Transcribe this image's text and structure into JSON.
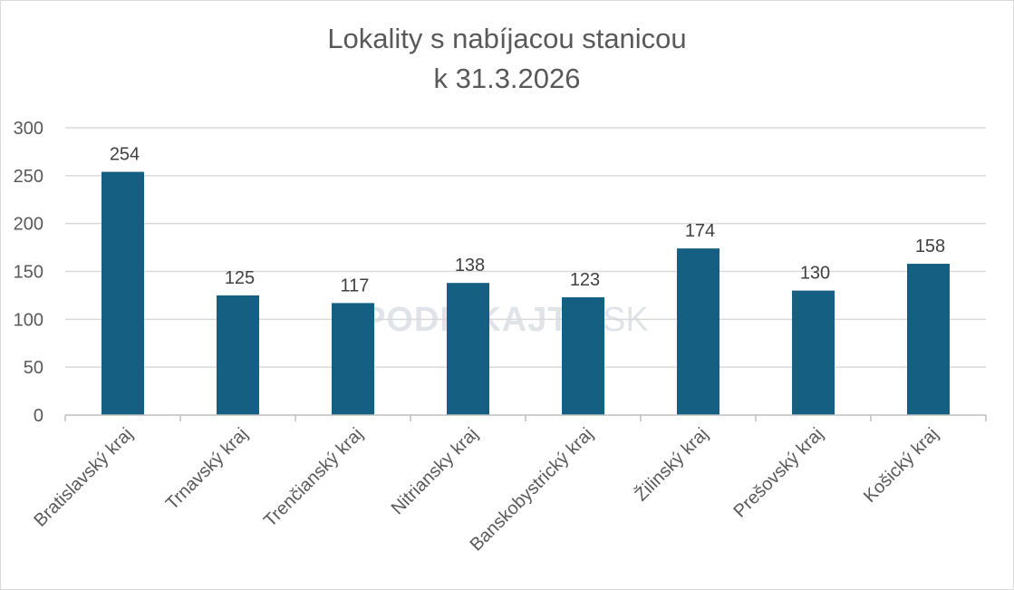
{
  "chart_data": {
    "type": "bar",
    "title_line1": "Lokality s nabíjacou stanicou",
    "title_line2": "k 31.3.2026",
    "categories": [
      "Bratislavský kraj",
      "Trnavský kraj",
      "Trenčianský kraj",
      "Nitriansky kraj",
      "Banskobystrický kraj",
      "Žilinský kraj",
      "Prešovský kraj",
      "Košický kraj"
    ],
    "values": [
      254,
      125,
      117,
      138,
      123,
      174,
      130,
      158
    ],
    "ylim": [
      0,
      300
    ],
    "yticks": [
      0,
      50,
      100,
      150,
      200,
      250,
      300
    ],
    "grid": true,
    "bar_color": "#156082",
    "watermark": {
      "main": "PODNIKAJTE",
      "suffix": "SK"
    }
  }
}
